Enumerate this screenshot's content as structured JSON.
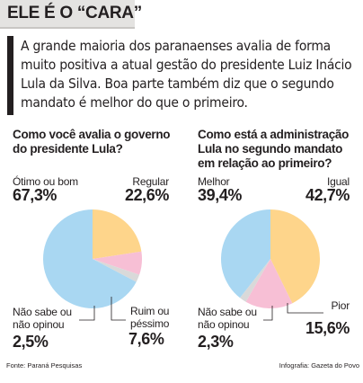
{
  "header": {
    "title": "ELE É O “CARA”"
  },
  "intro": "A grande maioria dos paranaenses avalia de forma muito positiva a atual gestão do presidente Luiz Inácio Lula da Silva. Boa parte também diz que o segundo mandato é melhor do que o primeiro.",
  "charts": [
    {
      "question": "Como você avalia o governo do presidente Lula?",
      "slices": [
        {
          "label": "Ótimo ou bom",
          "value_text": "67,3%"
        },
        {
          "label": "Regular",
          "value_text": "22,6%"
        },
        {
          "label": "Ruim ou péssimo",
          "value_text": "7,6%"
        },
        {
          "label": "Não sabe ou não opinou",
          "value_text": "2,5%"
        }
      ]
    },
    {
      "question": "Como está a administração Lula no segundo mandato em relação ao primeiro?",
      "slices": [
        {
          "label": "Melhor",
          "value_text": "39,4%"
        },
        {
          "label": "Igual",
          "value_text": "42,7%"
        },
        {
          "label": "Pior",
          "value_text": "15,6%"
        },
        {
          "label": "Não sabe ou não opinou",
          "value_text": "2,3%"
        }
      ]
    }
  ],
  "chart_data": [
    {
      "type": "pie",
      "title": "Como você avalia o governo do presidente Lula?",
      "labels": [
        "Regular",
        "Ruim ou péssimo",
        "Não sabe ou não opinou",
        "Ótimo ou bom"
      ],
      "values": [
        22.6,
        7.6,
        2.5,
        67.3
      ],
      "colors": [
        "#fed58b",
        "#f7bfd5",
        "#d9d9d9",
        "#a9d7f2"
      ]
    },
    {
      "type": "pie",
      "title": "Como está a administração Lula no segundo mandato em relação ao primeiro?",
      "labels": [
        "Igual",
        "Pior",
        "Não sabe ou não opinou",
        "Melhor"
      ],
      "values": [
        42.7,
        15.6,
        2.3,
        39.4
      ],
      "colors": [
        "#fed58b",
        "#f7bfd5",
        "#d9d9d9",
        "#a9d7f2"
      ]
    }
  ],
  "footer": {
    "source": "Fonte: Paraná Pesquisas",
    "credit": "Infografia: Gazeta do Povo"
  }
}
